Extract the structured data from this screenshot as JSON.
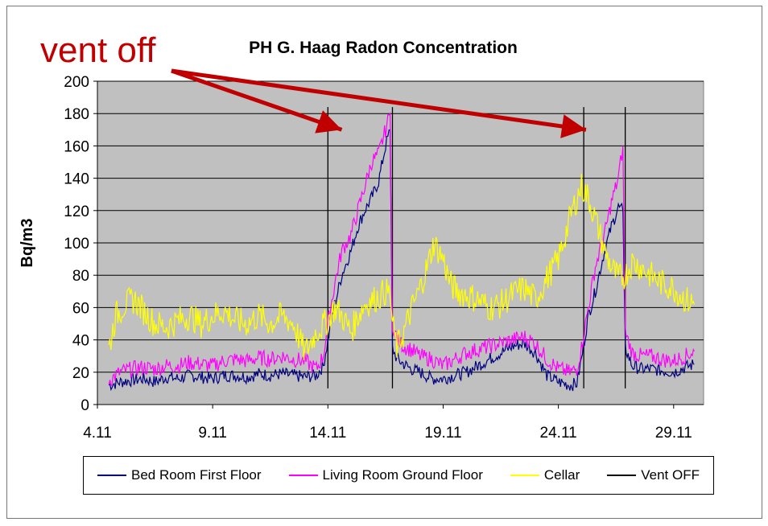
{
  "chart_data": {
    "type": "line",
    "title": "PH G. Haag Radon Concentration",
    "ylabel": "Bq/m3",
    "xlabel": "",
    "ylim": [
      0,
      200
    ],
    "xlim": [
      4.0,
      30.3
    ],
    "yticks": [
      0,
      20,
      40,
      60,
      80,
      100,
      120,
      140,
      160,
      180,
      200
    ],
    "xticks": [
      {
        "value": 4,
        "label": "4.11"
      },
      {
        "value": 9,
        "label": "9.11"
      },
      {
        "value": 14,
        "label": "14.11"
      },
      {
        "value": 19,
        "label": "19.11"
      },
      {
        "value": 24,
        "label": "24.11"
      },
      {
        "value": 29,
        "label": "29.11"
      }
    ],
    "grid": "horizontal",
    "plot_background": "#c0c0c0",
    "annotation": {
      "text": "vent off",
      "color": "#c00000",
      "targets": [
        {
          "x": 14.6,
          "y": 170
        },
        {
          "x": 25.2,
          "y": 170
        }
      ]
    },
    "vent_off_lines": [
      14.0,
      16.8,
      25.1,
      26.9
    ],
    "legend_position": "bottom",
    "series": [
      {
        "name": "Bed Room First Floor",
        "color": "#000080",
        "points": [
          [
            4.5,
            12
          ],
          [
            5.0,
            14
          ],
          [
            5.5,
            15
          ],
          [
            6.0,
            16
          ],
          [
            6.5,
            14
          ],
          [
            7.0,
            17
          ],
          [
            7.5,
            16
          ],
          [
            8.0,
            18
          ],
          [
            8.5,
            17
          ],
          [
            9.0,
            16
          ],
          [
            9.5,
            18
          ],
          [
            10.0,
            18
          ],
          [
            10.5,
            17
          ],
          [
            11.0,
            19
          ],
          [
            11.5,
            18
          ],
          [
            12.0,
            19
          ],
          [
            12.5,
            18
          ],
          [
            13.0,
            17
          ],
          [
            13.5,
            18
          ],
          [
            13.8,
            24
          ],
          [
            14.0,
            40
          ],
          [
            14.3,
            62
          ],
          [
            14.6,
            80
          ],
          [
            15.0,
            95
          ],
          [
            15.3,
            110
          ],
          [
            15.6,
            120
          ],
          [
            15.9,
            128
          ],
          [
            16.2,
            138
          ],
          [
            16.5,
            160
          ],
          [
            16.7,
            170
          ],
          [
            16.8,
            35
          ],
          [
            17.0,
            28
          ],
          [
            17.3,
            25
          ],
          [
            17.6,
            22
          ],
          [
            18.0,
            20
          ],
          [
            18.5,
            16
          ],
          [
            19.0,
            16
          ],
          [
            19.5,
            18
          ],
          [
            20.0,
            20
          ],
          [
            20.5,
            24
          ],
          [
            21.0,
            28
          ],
          [
            21.5,
            32
          ],
          [
            22.0,
            36
          ],
          [
            22.5,
            38
          ],
          [
            23.0,
            32
          ],
          [
            23.5,
            18
          ],
          [
            24.0,
            14
          ],
          [
            24.5,
            12
          ],
          [
            24.8,
            13
          ],
          [
            25.0,
            28
          ],
          [
            25.3,
            55
          ],
          [
            25.6,
            70
          ],
          [
            26.0,
            95
          ],
          [
            26.3,
            110
          ],
          [
            26.6,
            122
          ],
          [
            26.8,
            120
          ],
          [
            26.9,
            35
          ],
          [
            27.2,
            24
          ],
          [
            27.6,
            22
          ],
          [
            28.0,
            22
          ],
          [
            28.5,
            21
          ],
          [
            29.0,
            20
          ],
          [
            29.5,
            23
          ],
          [
            29.9,
            25
          ]
        ]
      },
      {
        "name": "Living Room Ground Floor",
        "color": "#ff00ff",
        "points": [
          [
            4.5,
            15
          ],
          [
            5.0,
            20
          ],
          [
            5.5,
            22
          ],
          [
            6.0,
            23
          ],
          [
            6.5,
            22
          ],
          [
            7.0,
            24
          ],
          [
            7.5,
            24
          ],
          [
            8.0,
            26
          ],
          [
            8.5,
            25
          ],
          [
            9.0,
            24
          ],
          [
            9.5,
            27
          ],
          [
            10.0,
            28
          ],
          [
            10.5,
            27
          ],
          [
            11.0,
            29
          ],
          [
            11.5,
            28
          ],
          [
            12.0,
            30
          ],
          [
            12.5,
            28
          ],
          [
            13.0,
            27
          ],
          [
            13.5,
            22
          ],
          [
            13.8,
            30
          ],
          [
            14.0,
            50
          ],
          [
            14.3,
            75
          ],
          [
            14.6,
            95
          ],
          [
            15.0,
            105
          ],
          [
            15.3,
            120
          ],
          [
            15.6,
            135
          ],
          [
            15.9,
            150
          ],
          [
            16.2,
            155
          ],
          [
            16.5,
            170
          ],
          [
            16.7,
            180
          ],
          [
            16.8,
            50
          ],
          [
            17.0,
            40
          ],
          [
            17.3,
            36
          ],
          [
            17.6,
            34
          ],
          [
            18.0,
            30
          ],
          [
            18.5,
            28
          ],
          [
            19.0,
            24
          ],
          [
            19.5,
            28
          ],
          [
            20.0,
            32
          ],
          [
            20.5,
            34
          ],
          [
            21.0,
            36
          ],
          [
            21.5,
            38
          ],
          [
            22.0,
            40
          ],
          [
            22.5,
            42
          ],
          [
            23.0,
            38
          ],
          [
            23.5,
            28
          ],
          [
            24.0,
            22
          ],
          [
            24.5,
            20
          ],
          [
            24.8,
            22
          ],
          [
            25.0,
            35
          ],
          [
            25.3,
            60
          ],
          [
            25.6,
            85
          ],
          [
            26.0,
            105
          ],
          [
            26.3,
            125
          ],
          [
            26.6,
            140
          ],
          [
            26.8,
            160
          ],
          [
            26.9,
            45
          ],
          [
            27.2,
            32
          ],
          [
            27.6,
            30
          ],
          [
            28.0,
            30
          ],
          [
            28.5,
            28
          ],
          [
            29.0,
            27
          ],
          [
            29.5,
            30
          ],
          [
            29.9,
            33
          ]
        ]
      },
      {
        "name": "Cellar",
        "color": "#ffff00",
        "points": [
          [
            4.5,
            35
          ],
          [
            4.8,
            55
          ],
          [
            5.2,
            62
          ],
          [
            5.6,
            65
          ],
          [
            6.0,
            58
          ],
          [
            6.5,
            50
          ],
          [
            7.0,
            48
          ],
          [
            7.5,
            52
          ],
          [
            8.0,
            55
          ],
          [
            8.5,
            50
          ],
          [
            9.0,
            55
          ],
          [
            9.5,
            58
          ],
          [
            10.0,
            52
          ],
          [
            10.5,
            50
          ],
          [
            11.0,
            55
          ],
          [
            11.5,
            50
          ],
          [
            12.0,
            55
          ],
          [
            12.5,
            50
          ],
          [
            13.0,
            32
          ],
          [
            13.5,
            45
          ],
          [
            14.0,
            52
          ],
          [
            14.3,
            60
          ],
          [
            14.6,
            55
          ],
          [
            15.0,
            45
          ],
          [
            15.3,
            55
          ],
          [
            15.6,
            62
          ],
          [
            16.0,
            65
          ],
          [
            16.5,
            70
          ],
          [
            16.7,
            68
          ],
          [
            16.8,
            50
          ],
          [
            17.0,
            35
          ],
          [
            17.3,
            45
          ],
          [
            17.6,
            58
          ],
          [
            18.0,
            72
          ],
          [
            18.3,
            85
          ],
          [
            18.6,
            100
          ],
          [
            19.0,
            90
          ],
          [
            19.3,
            75
          ],
          [
            19.6,
            70
          ],
          [
            20.0,
            68
          ],
          [
            20.5,
            65
          ],
          [
            21.0,
            60
          ],
          [
            21.5,
            62
          ],
          [
            22.0,
            68
          ],
          [
            22.5,
            72
          ],
          [
            23.0,
            65
          ],
          [
            23.5,
            78
          ],
          [
            24.0,
            90
          ],
          [
            24.3,
            105
          ],
          [
            24.6,
            120
          ],
          [
            25.0,
            135
          ],
          [
            25.3,
            128
          ],
          [
            25.6,
            115
          ],
          [
            26.0,
            95
          ],
          [
            26.3,
            85
          ],
          [
            26.6,
            78
          ],
          [
            26.9,
            80
          ],
          [
            27.2,
            88
          ],
          [
            27.6,
            85
          ],
          [
            28.0,
            80
          ],
          [
            28.5,
            75
          ],
          [
            29.0,
            72
          ],
          [
            29.5,
            65
          ],
          [
            29.9,
            62
          ]
        ]
      },
      {
        "name": "Vent OFF",
        "color": "#000000",
        "points": []
      }
    ]
  }
}
